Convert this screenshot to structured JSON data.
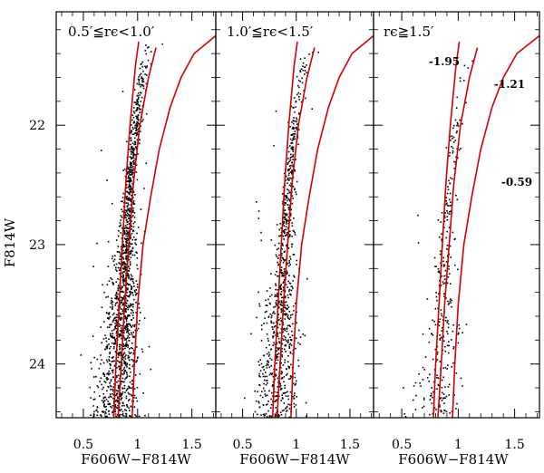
{
  "chart_data": {
    "type": "scatter",
    "shared": {
      "xlabel": "F606W−F814W",
      "ylabel": "F814W",
      "xlim": [
        0.25,
        1.72
      ],
      "ylim": [
        24.45,
        21.05
      ],
      "x_ticks": [
        0.5,
        1,
        1.5
      ],
      "x_tick_labels": [
        "0.5",
        "1",
        "1.5"
      ],
      "y_ticks": [
        22,
        23,
        24
      ],
      "y_tick_labels": [
        "22",
        "23",
        "24"
      ],
      "isochrone_color": "#d40000",
      "isochrones": [
        {
          "name": "-1.95",
          "points": [
            [
              0.78,
              24.45
            ],
            [
              0.8,
              24.0
            ],
            [
              0.83,
              23.5
            ],
            [
              0.86,
              23.0
            ],
            [
              0.89,
              22.5
            ],
            [
              0.93,
              22.0
            ],
            [
              0.98,
              21.5
            ],
            [
              1.01,
              21.3
            ]
          ]
        },
        {
          "name": "-1.21",
          "points": [
            [
              0.82,
              24.45
            ],
            [
              0.85,
              24.0
            ],
            [
              0.88,
              23.5
            ],
            [
              0.92,
              23.0
            ],
            [
              0.96,
              22.5
            ],
            [
              1.02,
              22.0
            ],
            [
              1.1,
              21.6
            ],
            [
              1.17,
              21.35
            ]
          ]
        },
        {
          "name": "-0.59",
          "points": [
            [
              0.95,
              24.45
            ],
            [
              0.97,
              24.0
            ],
            [
              1.0,
              23.5
            ],
            [
              1.05,
              23.0
            ],
            [
              1.12,
              22.6
            ],
            [
              1.2,
              22.2
            ],
            [
              1.3,
              21.85
            ],
            [
              1.4,
              21.6
            ],
            [
              1.52,
              21.4
            ],
            [
              1.72,
              21.25
            ]
          ]
        }
      ]
    },
    "panels": [
      {
        "label": "0.5′≦rϵ<1.0′",
        "density": 1.0
      },
      {
        "label": "1.0′≦rϵ<1.5′",
        "density": 0.6
      },
      {
        "label": "rϵ≧1.5′",
        "density": 0.22,
        "isochrone_labels": [
          "-1.95",
          "-1.21",
          "-0.59"
        ]
      }
    ]
  }
}
